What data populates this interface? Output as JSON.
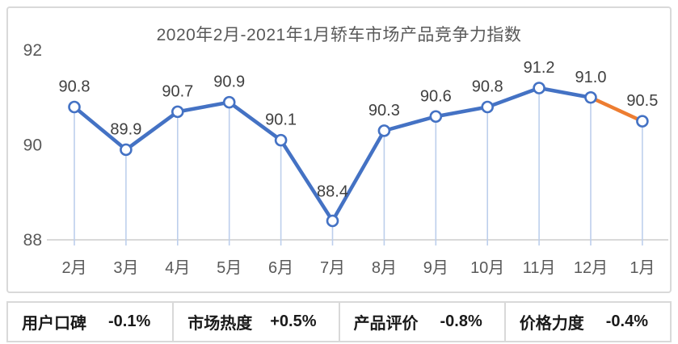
{
  "chart_data": {
    "type": "line",
    "title": "2020年2月-2021年1月轿车市场产品竞争力指数",
    "categories": [
      "2月",
      "3月",
      "4月",
      "5月",
      "6月",
      "7月",
      "8月",
      "9月",
      "10月",
      "11月",
      "12月",
      "1月"
    ],
    "values": [
      90.8,
      89.9,
      90.7,
      90.9,
      90.1,
      88.4,
      90.3,
      90.6,
      90.8,
      91.2,
      91.0,
      90.5
    ],
    "data_labels": [
      "90.8",
      "89.9",
      "90.7",
      "90.9",
      "90.1",
      "88.4",
      "90.3",
      "90.6",
      "90.8",
      "91.2",
      "91.0",
      "90.5"
    ],
    "ylim": [
      88,
      92
    ],
    "yticks": [
      88,
      90,
      92
    ],
    "grid": false,
    "legend": "none",
    "xlabel": "",
    "ylabel": "",
    "series_color": "#4472C4",
    "highlight_segment": {
      "start_index": 10,
      "end_index": 11,
      "color": "#ED7D31"
    },
    "marker": {
      "fill": "#FFFFFF",
      "stroke": "#4472C4"
    },
    "dropline_color": "#BDCFEC",
    "axis_color": "#D9D9D9",
    "label_color": "#595959",
    "data_label_color": "#404040"
  },
  "stats": [
    {
      "label": "用户口碑",
      "value": "-0.1%"
    },
    {
      "label": "市场热度",
      "value": "+0.5%"
    },
    {
      "label": "产品评价",
      "value": "-0.8%"
    },
    {
      "label": "价格力度",
      "value": "-0.4%"
    }
  ]
}
